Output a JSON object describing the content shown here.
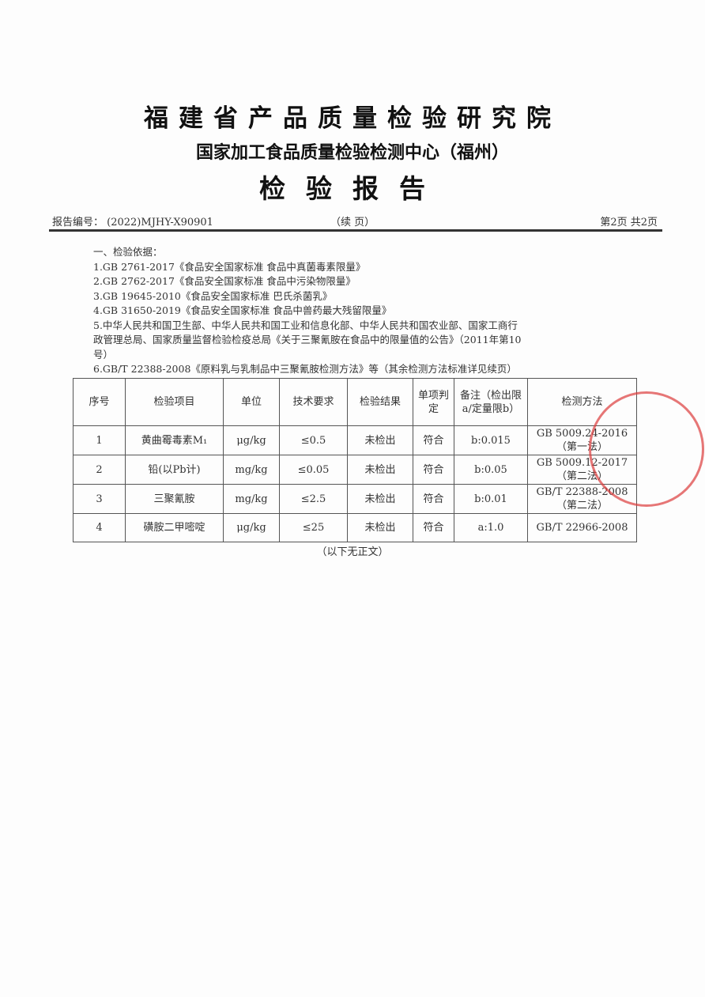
{
  "title": "福建省产品质量检验研究院",
  "subtitle": "国家加工食品质量检验检测中心（福州）",
  "doc_title": "检验报告",
  "report_no_label": "报告编号：",
  "report_no": "(2022)MJHY-X90901",
  "continued": "（续 页）",
  "page_info": "第2页  共2页",
  "basis": {
    "heading": "一、检验依据：",
    "items": [
      "1.GB 2761-2017《食品安全国家标准 食品中真菌毒素限量》",
      "2.GB 2762-2017《食品安全国家标准 食品中污染物限量》",
      "3.GB 19645-2010《食品安全国家标准 巴氏杀菌乳》",
      "4.GB 31650-2019《食品安全国家标准 食品中兽药最大残留限量》",
      "5.中华人民共和国卫生部、中华人民共和国工业和信息化部、中华人民共和国农业部、国家工商行",
      "政管理总局、国家质量监督检验检疫总局《关于三聚氰胺在食品中的限量值的公告》（2011年第10",
      "号）",
      "6.GB/T 22388-2008《原料乳与乳制品中三聚氰胺检测方法》等（其余检测方法标准详见续页）"
    ]
  },
  "table": {
    "headers": [
      "序号",
      "检验项目",
      "单位",
      "技术要求",
      "检验结果",
      "单项判定",
      "备注（检出限a/定量限b）",
      "检测方法"
    ],
    "rows": [
      [
        "1",
        "黄曲霉毒素M₁",
        "μg/kg",
        "≤0.5",
        "未检出",
        "符合",
        "b:0.015",
        "GB 5009.24-2016（第一法）"
      ],
      [
        "2",
        "铅(以Pb计)",
        "mg/kg",
        "≤0.05",
        "未检出",
        "符合",
        "b:0.05",
        "GB 5009.12-2017（第二法）"
      ],
      [
        "3",
        "三聚氰胺",
        "mg/kg",
        "≤2.5",
        "未检出",
        "符合",
        "b:0.01",
        "GB/T 22388-2008（第二法）"
      ],
      [
        "4",
        "磺胺二甲嘧啶",
        "μg/kg",
        "≤25",
        "未检出",
        "符合",
        "a:1.0",
        "GB/T 22966-2008"
      ]
    ]
  },
  "end_note": "（以下无正文）",
  "stamp_color": "#dc3c3c"
}
